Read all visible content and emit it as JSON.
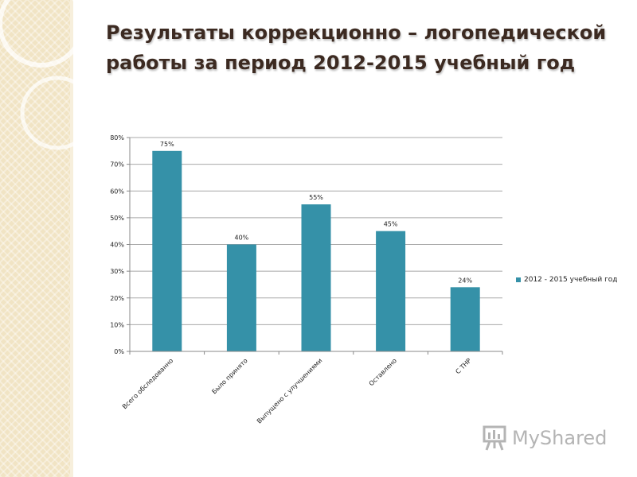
{
  "slide": {
    "title_line1": "Результаты коррекционно – логопедической",
    "title_line2": "работы за период 2012-2015 учебный год"
  },
  "colors": {
    "bar": "#3591a8",
    "grid": "#a8a8a8",
    "axis": "#888888",
    "title": "#3c2a21",
    "band": "#f1e4c4"
  },
  "chart_data": {
    "type": "bar",
    "categories": [
      "Всего обследованно",
      "Было принято",
      "Выпущено с улучшениями",
      "Оставлено",
      "С ТНР"
    ],
    "series": [
      {
        "name": "2012 - 2015 учебный год",
        "values": [
          75,
          40,
          55,
          45,
          24
        ]
      }
    ],
    "data_labels": [
      "75%",
      "40%",
      "55%",
      "45%",
      "24%"
    ],
    "ylim": [
      0,
      80
    ],
    "yticks": [
      0,
      10,
      20,
      30,
      40,
      50,
      60,
      70,
      80
    ],
    "ytick_labels": [
      "0%",
      "10%",
      "20%",
      "30%",
      "40%",
      "50%",
      "60%",
      "70%",
      "80%"
    ],
    "grid": true,
    "legend_position": "right"
  },
  "watermark": {
    "icon": "presentation-board-icon",
    "text": "MyShared"
  }
}
